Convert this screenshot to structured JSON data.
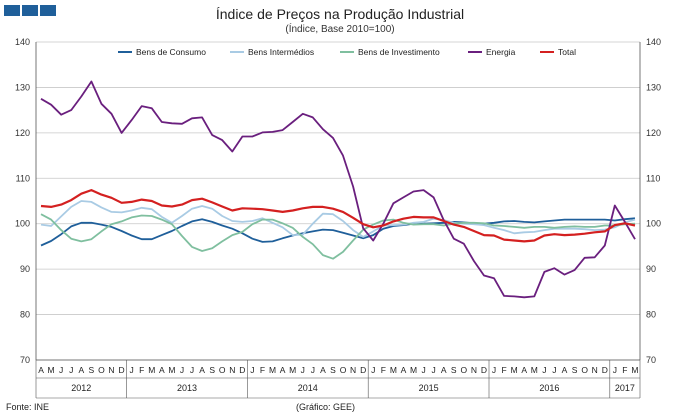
{
  "header": {
    "title": "Índice de Preços na Produção Industrial",
    "subtitle": "(Índice, Base 2010=100)"
  },
  "footer": {
    "source": "Fonte: INE",
    "credit": "(Gráfico: GEE)"
  },
  "chart_data": {
    "type": "line",
    "title": "Índice de Preços na Produção Industrial",
    "subtitle": "(Índice, Base 2010=100)",
    "xlabel": "",
    "ylabel": "",
    "ylim": [
      70,
      140
    ],
    "yticks": [
      70,
      80,
      90,
      100,
      110,
      120,
      130,
      140
    ],
    "grid": true,
    "legend_position": "top",
    "x_months": [
      "A",
      "M",
      "J",
      "J",
      "A",
      "S",
      "O",
      "N",
      "D",
      "J",
      "F",
      "M",
      "A",
      "M",
      "J",
      "J",
      "A",
      "S",
      "O",
      "N",
      "D",
      "J",
      "F",
      "M",
      "A",
      "M",
      "J",
      "J",
      "A",
      "S",
      "O",
      "N",
      "D",
      "J",
      "F",
      "M",
      "A",
      "M",
      "J",
      "J",
      "A",
      "S",
      "O",
      "N",
      "D",
      "J",
      "F",
      "M",
      "A",
      "M",
      "J",
      "J",
      "A",
      "S",
      "O",
      "N",
      "D",
      "J",
      "F",
      "M"
    ],
    "x_years": [
      {
        "label": "2012",
        "start": 0,
        "count": 9
      },
      {
        "label": "2013",
        "start": 9,
        "count": 12
      },
      {
        "label": "2014",
        "start": 21,
        "count": 12
      },
      {
        "label": "2015",
        "start": 33,
        "count": 12
      },
      {
        "label": "2016",
        "start": 45,
        "count": 12
      },
      {
        "label": "2017",
        "start": 57,
        "count": 3
      }
    ],
    "series": [
      {
        "name": "Bens de Consumo",
        "color": "#1f5f9a",
        "values": [
          95.2,
          96.2,
          97.7,
          99.4,
          100.2,
          100.2,
          99.8,
          99.3,
          98.4,
          97.4,
          96.6,
          96.6,
          97.5,
          98.4,
          99.5,
          100.5,
          101,
          100.4,
          99.6,
          98.9,
          97.9,
          96.7,
          96,
          96.1,
          96.8,
          97.4,
          97.9,
          98.3,
          98.7,
          98.6,
          98,
          97.4,
          96.8,
          97.5,
          98.9,
          99.5,
          99.7,
          100,
          100,
          100.1,
          100.2,
          100.4,
          100.3,
          100.1,
          100,
          100.2,
          100.5,
          100.6,
          100.4,
          100.3,
          100.5,
          100.7,
          100.9,
          100.9,
          100.9,
          100.9,
          100.9,
          100.7,
          101,
          101.2
        ]
      },
      {
        "name": "Bens Intermédios",
        "color": "#a9cbe4",
        "values": [
          99.8,
          99.5,
          101.6,
          103.7,
          105,
          104.8,
          103.6,
          102.6,
          102.5,
          102.9,
          103.5,
          103.2,
          101.5,
          100.2,
          101.7,
          103.3,
          103.9,
          103.3,
          101.7,
          100.6,
          100.4,
          100.6,
          101.2,
          100.2,
          99.2,
          97.5,
          97.6,
          100,
          102.2,
          102.1,
          100.6,
          98.6,
          97.1,
          98.3,
          99.6,
          99.7,
          99.8,
          100.2,
          100.4,
          101.1,
          100.8,
          100.2,
          100,
          99.9,
          99.7,
          99.1,
          98.6,
          97.9,
          98.1,
          98.2,
          98.6,
          98.9,
          98.9,
          98.9,
          98.8,
          98.6,
          98.7,
          99.2,
          100.3,
          100.9
        ]
      },
      {
        "name": "Bens de Investimento",
        "color": "#7fbf9f",
        "values": [
          102.1,
          100.9,
          98.6,
          96.7,
          96.1,
          96.6,
          98.3,
          99.9,
          100.5,
          101.4,
          101.8,
          101.7,
          100.9,
          99.9,
          97.3,
          94.9,
          94,
          94.6,
          96.1,
          97.5,
          98.2,
          99.9,
          100.9,
          100.9,
          100.1,
          99.1,
          97.1,
          95.5,
          93.1,
          92.3,
          93.8,
          96.3,
          98.7,
          99.8,
          100.7,
          100.9,
          100.2,
          99.8,
          99.9,
          99.9,
          99.6,
          100,
          100.2,
          100.2,
          100.1,
          99.6,
          99.5,
          99.3,
          99.1,
          99.3,
          99.3,
          99.1,
          99.3,
          99.4,
          99.3,
          99.3,
          99.6,
          99.6,
          99.9,
          100
        ]
      },
      {
        "name": "Energia",
        "color": "#6a1f7e",
        "values": [
          127.5,
          126.2,
          124,
          125,
          128,
          131.3,
          126.4,
          124.2,
          120,
          122.8,
          125.9,
          125.4,
          122.4,
          122.1,
          122,
          123.2,
          123.4,
          119.5,
          118.4,
          115.9,
          119.2,
          119.2,
          120.1,
          120.2,
          120.6,
          122.4,
          124.2,
          123.4,
          120.8,
          118.9,
          115,
          108.2,
          99,
          96.3,
          100,
          104.5,
          105.8,
          107.1,
          107.4,
          105.8,
          100.8,
          96.7,
          95.6,
          91.8,
          88.6,
          88,
          84.1,
          84,
          83.8,
          84,
          89.4,
          90.2,
          88.8,
          89.8,
          92.5,
          92.6,
          95.2,
          104,
          100.4,
          96.6
        ]
      },
      {
        "name": "Total",
        "color": "#d42020",
        "values": [
          103.9,
          103.7,
          104.2,
          105.2,
          106.6,
          107.4,
          106.4,
          105.7,
          104.6,
          104.8,
          105.3,
          105,
          104,
          103.8,
          104.2,
          105.2,
          105.5,
          104.7,
          103.8,
          102.9,
          103.4,
          103.3,
          103.2,
          102.9,
          102.6,
          102.9,
          103.4,
          103.7,
          103.7,
          103.3,
          102.6,
          101.3,
          99.9,
          99.2,
          99.6,
          100.5,
          101.1,
          101.5,
          101.4,
          101.4,
          100.6,
          99.8,
          99.3,
          98.4,
          97.5,
          97.4,
          96.5,
          96.3,
          96.1,
          96.3,
          97.4,
          97.7,
          97.5,
          97.6,
          97.8,
          98.1,
          98.3,
          99.7,
          100.1,
          99.6
        ]
      }
    ]
  }
}
